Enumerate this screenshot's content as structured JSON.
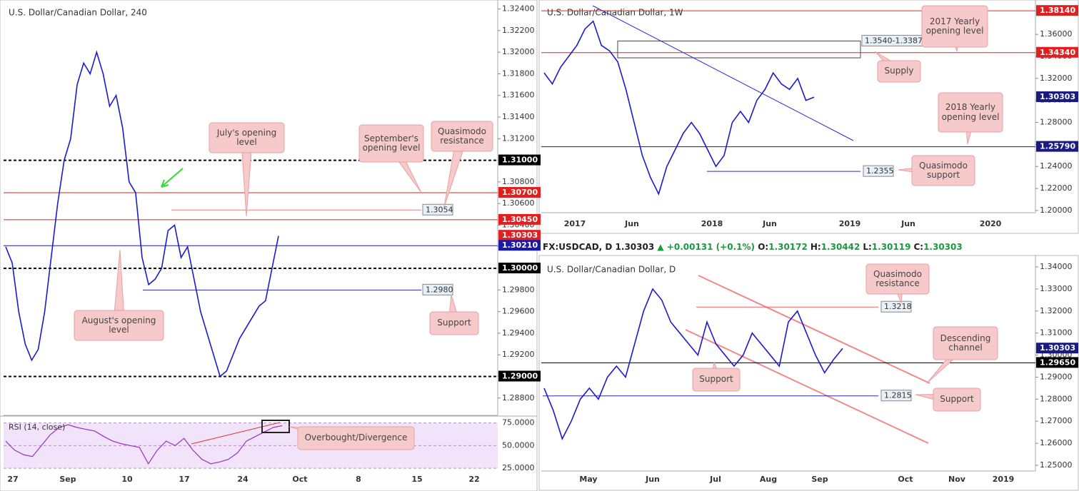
{
  "info_bar": {
    "symbol": "FX:USDCAD, D",
    "price": "1.30303",
    "change": "▲ +0.00131 (+0.1%)",
    "ohlc": [
      {
        "key": "O:",
        "value": "1.30172"
      },
      {
        "key": "H:",
        "value": "1.30442"
      },
      {
        "key": "L:",
        "value": "1.30119"
      },
      {
        "key": "C:",
        "value": "1.30303"
      }
    ]
  },
  "chart_data": [
    {
      "type": "line",
      "title": "U.S. Dollar/Canadian Dollar, 240",
      "color": "#1a1ad0",
      "values": [
        1.302,
        1.3005,
        1.296,
        1.293,
        1.2915,
        1.2925,
        1.296,
        1.301,
        1.306,
        1.31,
        1.312,
        1.317,
        1.319,
        1.318,
        1.32,
        1.318,
        1.315,
        1.316,
        1.313,
        1.308,
        1.307,
        1.301,
        1.2985,
        1.299,
        1.3,
        1.3035,
        1.304,
        1.301,
        1.302,
        1.299,
        1.296,
        1.294,
        1.292,
        1.29,
        1.2905,
        1.292,
        1.2935,
        1.2945,
        1.2955,
        1.2965,
        1.297,
        1.3,
        1.303
      ],
      "ylim": [
        1.2864,
        1.3245
      ],
      "yticks": [
        {
          "value": 1.288,
          "label": "1.28800"
        },
        {
          "value": 1.29,
          "label": "1.29000"
        },
        {
          "value": 1.292,
          "label": "1.29200"
        },
        {
          "value": 1.294,
          "label": "1.29400"
        },
        {
          "value": 1.296,
          "label": "1.29600"
        },
        {
          "value": 1.298,
          "label": "1.29800"
        },
        {
          "value": 1.3,
          "label": "1.30000"
        },
        {
          "value": 1.302,
          "label": "1.30200"
        },
        {
          "value": 1.304,
          "label": "1.30400"
        },
        {
          "value": 1.306,
          "label": "1.30600"
        },
        {
          "value": 1.308,
          "label": "1.30800"
        },
        {
          "value": 1.31,
          "label": "1.31000"
        },
        {
          "value": 1.312,
          "label": "1.31200"
        },
        {
          "value": 1.314,
          "label": "1.31400"
        },
        {
          "value": 1.316,
          "label": "1.31600"
        },
        {
          "value": 1.318,
          "label": "1.31800"
        },
        {
          "value": 1.32,
          "label": "1.32000"
        },
        {
          "value": 1.322,
          "label": "1.32200"
        },
        {
          "value": 1.324,
          "label": "1.32400"
        }
      ],
      "xticks": [
        "27",
        "Sep",
        "10",
        "17",
        "24",
        "Oct",
        "8",
        "15",
        "22"
      ],
      "levels": [
        {
          "value": 1.31,
          "label": "1.31000",
          "color": "#000000",
          "style": "dashed",
          "label_at": "axis"
        },
        {
          "value": 1.307,
          "label": "1.30700",
          "color": "#e02020",
          "style": "solid",
          "label_at": "axis"
        },
        {
          "value": 1.3045,
          "label": "1.30450",
          "color": "#e02020",
          "style": "solid",
          "label_at": "axis"
        },
        {
          "value": 1.30303,
          "label": "1.30303",
          "color": "#e02020",
          "style": "none",
          "label_at": "axis"
        },
        {
          "value": 1.3021,
          "label": "1.30210",
          "color": "#1a1aa6",
          "style": "solid",
          "label_at": "axis"
        },
        {
          "value": 1.3,
          "label": "1.30000",
          "color": "#000000",
          "style": "dashed",
          "label_at": "axis"
        },
        {
          "value": 1.29,
          "label": "1.29000",
          "color": "#000000",
          "style": "dashed",
          "label_at": "axis"
        },
        {
          "value": 1.3054,
          "label": "1.3054",
          "color": "#f08080",
          "style": "solid",
          "label_at": "plot"
        },
        {
          "value": 1.298,
          "label": "1.2980",
          "color": "#2a2ab0",
          "style": "solid",
          "label_at": "plot"
        }
      ],
      "annotations": [
        "July's opening level",
        "September's opening level",
        "Quasimodo resistance",
        "August's opening level",
        "Support",
        "Overbought/Divergence"
      ],
      "indicator": {
        "name": "RSI (14, close)",
        "color": "#9b30c0",
        "values": [
          55,
          45,
          40,
          38,
          50,
          62,
          70,
          73,
          70,
          68,
          66,
          60,
          55,
          52,
          50,
          48,
          30,
          45,
          55,
          50,
          58,
          45,
          35,
          30,
          32,
          35,
          42,
          55,
          60,
          65,
          70,
          72
        ],
        "ylim": [
          22,
          81
        ],
        "yticks": [
          {
            "value": 25,
            "label": "25.0000"
          },
          {
            "value": 50,
            "label": "50.0000"
          },
          {
            "value": 75,
            "label": "75.0000"
          }
        ]
      }
    },
    {
      "type": "line",
      "title": "U.S. Dollar/Canadian Dollar, 1W",
      "color": "#1a1ad0",
      "values": [
        1.325,
        1.315,
        1.33,
        1.34,
        1.35,
        1.365,
        1.372,
        1.35,
        1.345,
        1.335,
        1.31,
        1.28,
        1.25,
        1.23,
        1.215,
        1.24,
        1.255,
        1.27,
        1.28,
        1.27,
        1.255,
        1.24,
        1.25,
        1.28,
        1.29,
        1.28,
        1.3,
        1.31,
        1.325,
        1.315,
        1.31,
        1.32,
        1.3,
        1.303
      ],
      "ylim": [
        1.198,
        1.388
      ],
      "yticks": [
        {
          "value": 1.2,
          "label": "1.20000"
        },
        {
          "value": 1.22,
          "label": "1.22000"
        },
        {
          "value": 1.24,
          "label": "1.24000"
        },
        {
          "value": 1.26,
          "label": "1.26000"
        },
        {
          "value": 1.28,
          "label": "1.28000"
        },
        {
          "value": 1.3,
          "label": "1.30000"
        },
        {
          "value": 1.32,
          "label": "1.32000"
        },
        {
          "value": 1.34,
          "label": "1.34000"
        },
        {
          "value": 1.36,
          "label": "1.36000"
        }
      ],
      "xticks": [
        "2017",
        "Jun",
        "2018",
        "Jun",
        "2019",
        "Jun",
        "2020"
      ],
      "zone": {
        "range": [
          1.354,
          1.3387
        ],
        "label": "1.3540-1.3387"
      },
      "levels": [
        {
          "value": 1.3814,
          "label": "1.38140",
          "color": "#e02020",
          "style": "solid",
          "label_at": "axis"
        },
        {
          "value": 1.3434,
          "label": "1.34340",
          "color": "#e02020",
          "style": "solid",
          "label_at": "axis"
        },
        {
          "value": 1.30303,
          "label": "1.30303",
          "color": "#1a1a80",
          "style": "none",
          "label_at": "axis"
        },
        {
          "value": 1.2579,
          "label": "1.25790",
          "color": "#1a1a80",
          "style": "solid",
          "label_at": "axis"
        },
        {
          "value": 1.2355,
          "label": "1.2355",
          "color": "#2a2ab0",
          "style": "solid",
          "label_at": "plot"
        }
      ],
      "annotations": [
        "2017 Yearly opening level",
        "Supply",
        "2018 Yearly opening level",
        "Quasimodo support"
      ]
    },
    {
      "type": "line",
      "title": "U.S. Dollar/Canadian Dollar, D",
      "color": "#1a1ad0",
      "values": [
        1.285,
        1.275,
        1.262,
        1.27,
        1.28,
        1.285,
        1.28,
        1.29,
        1.295,
        1.29,
        1.305,
        1.32,
        1.33,
        1.325,
        1.315,
        1.31,
        1.305,
        1.3,
        1.315,
        1.305,
        1.3,
        1.295,
        1.3,
        1.31,
        1.305,
        1.3,
        1.295,
        1.315,
        1.32,
        1.31,
        1.3,
        1.292,
        1.298,
        1.303
      ],
      "ylim": [
        1.2474,
        1.3439
      ],
      "yticks": [
        {
          "value": 1.25,
          "label": "1.25000"
        },
        {
          "value": 1.26,
          "label": "1.26000"
        },
        {
          "value": 1.27,
          "label": "1.27000"
        },
        {
          "value": 1.28,
          "label": "1.28000"
        },
        {
          "value": 1.29,
          "label": "1.29000"
        },
        {
          "value": 1.3,
          "label": "1.30000"
        },
        {
          "value": 1.31,
          "label": "1.31000"
        },
        {
          "value": 1.32,
          "label": "1.32000"
        },
        {
          "value": 1.33,
          "label": "1.33000"
        },
        {
          "value": 1.34,
          "label": "1.34000"
        }
      ],
      "xticks": [
        "May",
        "Jun",
        "Jul",
        "Aug",
        "Sep",
        "Oct",
        "Nov",
        "2019"
      ],
      "levels": [
        {
          "value": 1.30303,
          "label": "1.30303",
          "color": "#1a1a80",
          "style": "none",
          "label_at": "axis"
        },
        {
          "value": 1.2965,
          "label": "1.29650",
          "color": "#000000",
          "style": "solid",
          "label_at": "axis"
        },
        {
          "value": 1.3218,
          "label": "1.3218",
          "color": "#f06060",
          "style": "solid",
          "label_at": "plot"
        },
        {
          "value": 1.2815,
          "label": "1.2815",
          "color": "#2a2ab0",
          "style": "solid",
          "label_at": "plot"
        }
      ],
      "annotations": [
        "Quasimodo resistance",
        "Descending channel",
        "Support",
        "Support"
      ]
    }
  ]
}
